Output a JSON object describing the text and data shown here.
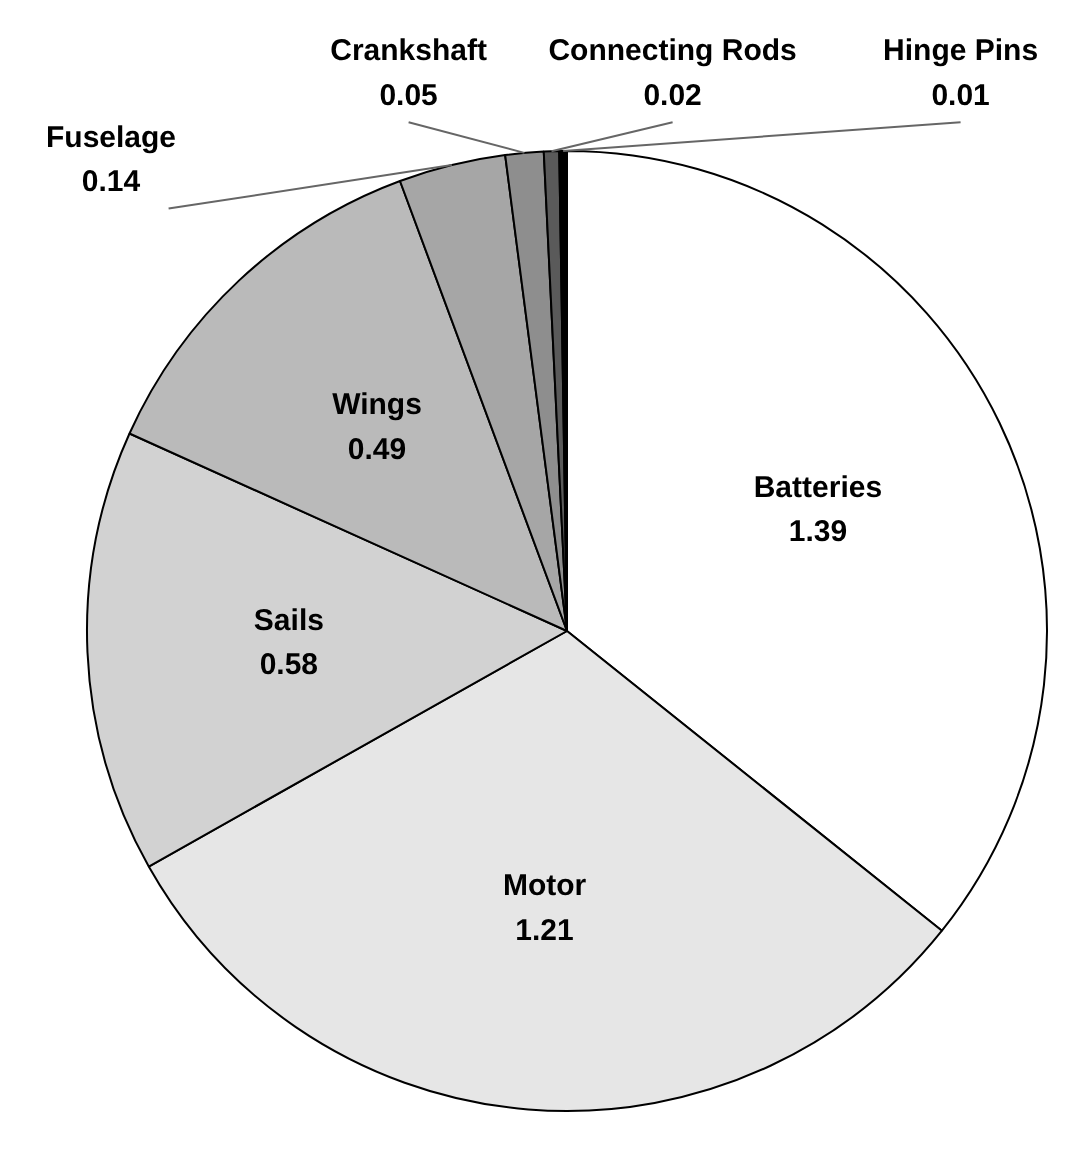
{
  "chart_data": {
    "type": "pie",
    "categories": [
      "Batteries",
      "Motor",
      "Sails",
      "Wings",
      "Fuselage",
      "Crankshaft",
      "Connecting Rods",
      "Hinge Pins"
    ],
    "values": [
      1.39,
      1.21,
      0.58,
      0.49,
      0.14,
      0.05,
      0.02,
      0.01
    ],
    "colors": [
      "#ffffff",
      "#e6e6e6",
      "#d2d2d2",
      "#bababa",
      "#a6a6a6",
      "#8e8e8e",
      "#5a5a5a",
      "#000000"
    ],
    "data_labels": true
  }
}
